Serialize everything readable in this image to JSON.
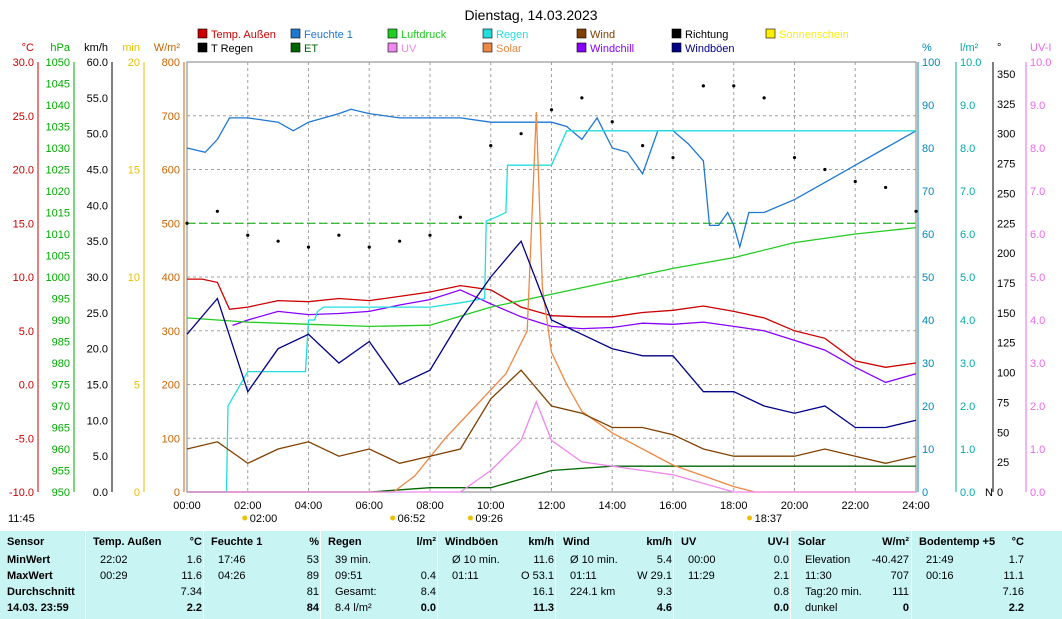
{
  "chart_data": {
    "type": "line",
    "title": "Dienstag, 14.03.2023",
    "x_ticks": [
      "00:00",
      "02:00",
      "04:00",
      "06:00",
      "08:00",
      "10:00",
      "12:00",
      "14:00",
      "16:00",
      "18:00",
      "20:00",
      "22:00",
      "24:00"
    ],
    "x_range_hours": [
      0,
      24
    ],
    "markers": [
      {
        "label": "02:00",
        "hour": 2.0,
        "color": "#f0c000"
      },
      {
        "label": "06:52",
        "hour": 6.87,
        "color": "#f0c000"
      },
      {
        "label": "09:26",
        "hour": 9.43,
        "color": "#f0c000"
      },
      {
        "label": "18:37",
        "hour": 18.62,
        "color": "#f0c000"
      }
    ],
    "start_label": "11:45",
    "left_axes": [
      {
        "unit": "°C",
        "color": "#cc0000",
        "ticks": [
          "30.0",
          "25.0",
          "20.0",
          "15.0",
          "10.0",
          "5.0",
          "0.0",
          "-5.0",
          "-10.0"
        ],
        "range": [
          -10,
          30
        ]
      },
      {
        "unit": "hPa",
        "color": "#00aa00",
        "ticks": [
          "1050",
          "1045",
          "1040",
          "1035",
          "1030",
          "1025",
          "1020",
          "1015",
          "1010",
          "1005",
          "1000",
          "995",
          "990",
          "985",
          "980",
          "975",
          "970",
          "965",
          "960",
          "955",
          "950"
        ],
        "range": [
          950,
          1050
        ]
      },
      {
        "unit": "km/h",
        "color": "#000000",
        "ticks": [
          "60.0",
          "55.0",
          "50.0",
          "45.0",
          "40.0",
          "35.0",
          "30.0",
          "25.0",
          "20.0",
          "15.0",
          "10.0",
          "5.0",
          "0.0"
        ],
        "range": [
          0,
          60
        ]
      },
      {
        "unit": "min",
        "color": "#e8c000",
        "ticks": [
          "20",
          "15",
          "10",
          "5",
          "0"
        ],
        "range": [
          0,
          20
        ]
      },
      {
        "unit": "W/m²",
        "color": "#c86400",
        "ticks": [
          "800",
          "700",
          "600",
          "500",
          "400",
          "300",
          "200",
          "100",
          "0"
        ],
        "range": [
          0,
          800
        ]
      }
    ],
    "right_axes": [
      {
        "unit": "%",
        "color": "#0088bb",
        "ticks": [
          "100",
          "90",
          "80",
          "70",
          "60",
          "50",
          "40",
          "30",
          "20",
          "10",
          "0"
        ],
        "range": [
          0,
          100
        ]
      },
      {
        "unit": "l/m²",
        "color": "#00aaaa",
        "ticks": [
          "10.0",
          "9.0",
          "8.0",
          "7.0",
          "6.0",
          "5.0",
          "4.0",
          "3.0",
          "2.0",
          "1.0",
          "0.0"
        ],
        "range": [
          0,
          10
        ]
      },
      {
        "unit": "°",
        "color": "#000000",
        "ticks": [
          "350",
          "325",
          "300",
          "275",
          "250",
          "225",
          "200",
          "175",
          "150",
          "125",
          "100",
          "75",
          "50",
          "25",
          "0"
        ],
        "range": [
          0,
          360
        ],
        "bottom_label": "N"
      },
      {
        "unit": "UV-I",
        "color": "#ee66ee",
        "ticks": [
          "10.0",
          "9.0",
          "8.0",
          "7.0",
          "6.0",
          "5.0",
          "4.0",
          "3.0",
          "2.0",
          "1.0",
          "0.0"
        ],
        "range": [
          0,
          10
        ]
      }
    ],
    "legend": [
      {
        "label": "Temp. Außen",
        "color": "#cc0000"
      },
      {
        "label": "Feuchte 1",
        "color": "#1e78d2"
      },
      {
        "label": "Luftdruck",
        "color": "#22cc22"
      },
      {
        "label": "Regen",
        "color": "#22dddd"
      },
      {
        "label": "Wind",
        "color": "#804000"
      },
      {
        "label": "Richtung",
        "color": "#000000"
      },
      {
        "label": "Sonnenschein",
        "color": "#ffee00"
      },
      {
        "label": "T Regen",
        "color": "#000000"
      },
      {
        "label": "ET",
        "color": "#006600"
      },
      {
        "label": "UV",
        "color": "#ee88ee"
      },
      {
        "label": "Solar",
        "color": "#ee8844"
      },
      {
        "label": "Windchill",
        "color": "#8800ff"
      },
      {
        "label": "Windböen",
        "color": "#000088"
      }
    ],
    "series": [
      {
        "name": "Temp. Außen",
        "axis": "°C",
        "color": "#cc0000",
        "x": [
          0,
          0.5,
          1,
          1.4,
          2,
          3,
          4,
          5,
          6,
          7,
          8,
          9,
          10,
          11,
          12,
          13,
          14,
          15,
          16,
          17,
          18,
          19,
          20,
          21,
          22,
          23,
          24
        ],
        "y": [
          9.8,
          9.8,
          9.5,
          7.0,
          7.2,
          7.8,
          7.7,
          8.0,
          7.8,
          8.2,
          8.6,
          9.2,
          8.8,
          7.2,
          6.4,
          6.3,
          6.3,
          6.7,
          6.9,
          7.3,
          6.8,
          6.2,
          5.0,
          4.3,
          2.2,
          1.6,
          2.0
        ]
      },
      {
        "name": "Windchill",
        "axis": "°C",
        "color": "#8800ff",
        "x": [
          1.5,
          2,
          3,
          4,
          5,
          6,
          7,
          8,
          9,
          10,
          11,
          12,
          13,
          14,
          15,
          16,
          17,
          18,
          19,
          20,
          21,
          22,
          23,
          24
        ],
        "y": [
          5.5,
          6.0,
          6.8,
          6.5,
          6.6,
          6.8,
          7.4,
          7.9,
          8.8,
          7.5,
          6.3,
          5.4,
          5.2,
          5.3,
          5.7,
          5.6,
          5.8,
          5.4,
          5.0,
          4.1,
          3.2,
          1.6,
          0.2,
          1.0
        ]
      },
      {
        "name": "Luftdruck",
        "axis": "hPa",
        "color": "#22cc22",
        "x": [
          0,
          2,
          4,
          6,
          8,
          10,
          12,
          14,
          16,
          18,
          20,
          22,
          24
        ],
        "y": [
          990.5,
          989.5,
          989.0,
          988.5,
          988.8,
          993.0,
          996.0,
          999.0,
          1002.0,
          1004.5,
          1008.0,
          1010.0,
          1011.5
        ]
      },
      {
        "name": "Feuchte 1",
        "axis": "%",
        "color": "#1e78d2",
        "x": [
          0,
          0.6,
          1.0,
          1.4,
          2,
          3,
          3.5,
          4,
          5,
          5.4,
          6,
          7,
          8,
          9,
          10,
          11,
          12,
          12.5,
          13,
          13.5,
          14,
          14.5,
          15,
          15.5,
          16,
          16.5,
          17,
          17.2,
          17.5,
          17.8,
          18,
          18.2,
          18.5,
          19,
          20,
          21,
          22,
          23,
          24
        ],
        "y": [
          80,
          79,
          82,
          87,
          87,
          86,
          84,
          86,
          88,
          89,
          88,
          87,
          87,
          87,
          86,
          86,
          86,
          85,
          82,
          87,
          80,
          79,
          74,
          84,
          84,
          81,
          77,
          62,
          62,
          65,
          62,
          57,
          65,
          65,
          68,
          72,
          76,
          80,
          84
        ]
      },
      {
        "name": "Regen",
        "axis": "l/m²",
        "color": "#22dddd",
        "x": [
          0,
          1.3,
          1.35,
          2.0,
          3.0,
          3.9,
          4.0,
          4.2,
          4.3,
          4.5,
          8.0,
          9.0,
          9.8,
          9.85,
          10.2,
          10.5,
          10.55,
          12.0,
          12.5,
          15.5,
          16.0,
          24.0
        ],
        "y": [
          0,
          0,
          2.0,
          2.8,
          2.8,
          2.8,
          4.0,
          4.0,
          4.2,
          4.3,
          4.3,
          4.4,
          4.5,
          6.3,
          6.4,
          6.5,
          7.6,
          7.6,
          8.4,
          8.4,
          8.4,
          8.4
        ]
      },
      {
        "name": "ET",
        "axis": "l/m²",
        "color": "#006600",
        "x": [
          0,
          2,
          4,
          6,
          8,
          10,
          12,
          14,
          16,
          18,
          24
        ],
        "y": [
          0,
          0,
          0,
          0,
          0.1,
          0.1,
          0.5,
          0.6,
          0.6,
          0.6,
          0.6
        ]
      },
      {
        "name": "Solar",
        "axis": "W/m²",
        "color": "#ee8844",
        "x": [
          0,
          6.8,
          7.5,
          8.5,
          9.5,
          10.5,
          11.2,
          11.5,
          11.7,
          12,
          12.5,
          13,
          14,
          15,
          16,
          17,
          18,
          18.7,
          24
        ],
        "y": [
          0,
          0,
          30,
          100,
          160,
          220,
          300,
          707,
          380,
          260,
          200,
          150,
          110,
          80,
          50,
          30,
          10,
          0,
          0
        ]
      },
      {
        "name": "UV",
        "axis": "UV-I",
        "color": "#ee88ee",
        "x": [
          0,
          9,
          10,
          11,
          11.5,
          12,
          13,
          14,
          15,
          16,
          17,
          18,
          24
        ],
        "y": [
          0,
          0,
          0.5,
          1.2,
          2.1,
          1.2,
          0.7,
          0.6,
          0.5,
          0.4,
          0.2,
          0,
          0
        ]
      },
      {
        "name": "Wind",
        "axis": "km/h",
        "color": "#804000",
        "x": [
          0,
          1,
          2,
          3,
          4,
          5,
          6,
          7,
          8,
          9,
          10,
          11,
          12,
          13,
          14,
          15,
          16,
          17,
          18,
          19,
          20,
          21,
          22,
          23,
          24
        ],
        "y": [
          6,
          7,
          4,
          6,
          7,
          5,
          6,
          4,
          5,
          6,
          13,
          17,
          12,
          11,
          9,
          9,
          8,
          6,
          5,
          5,
          5,
          6,
          5,
          4,
          5
        ]
      },
      {
        "name": "Windböen",
        "axis": "km/h",
        "color": "#000088",
        "x": [
          0,
          1,
          2,
          3,
          4,
          5,
          6,
          7,
          8,
          9,
          10,
          11,
          12,
          13,
          14,
          15,
          16,
          17,
          18,
          19,
          20,
          21,
          22,
          23,
          24
        ],
        "y": [
          22,
          27,
          14,
          20,
          22,
          18,
          21,
          15,
          17,
          24,
          30,
          35,
          24,
          22,
          20,
          19,
          19,
          14,
          14,
          12,
          11,
          12,
          9,
          9,
          10
        ]
      },
      {
        "name": "Richtung",
        "axis": "°",
        "color": "#000000",
        "style": "dots",
        "x": [
          0,
          1,
          2,
          3,
          4,
          5,
          6,
          7,
          8,
          9,
          10,
          11,
          12,
          13,
          14,
          15,
          16,
          17,
          18,
          19,
          20,
          21,
          22,
          23,
          24
        ],
        "y": [
          225,
          235,
          215,
          210,
          205,
          215,
          205,
          210,
          215,
          230,
          290,
          300,
          320,
          330,
          310,
          290,
          280,
          340,
          340,
          330,
          280,
          270,
          260,
          255,
          235
        ]
      }
    ],
    "reference_lines": [
      {
        "axis": "°C",
        "value": 15.0,
        "color": "#00aa00",
        "style": "dashed"
      }
    ]
  },
  "table": {
    "labels": [
      "Sensor",
      "MinWert",
      "MaxWert",
      "Durchschnitt",
      "14.03.  23:59"
    ],
    "columns": [
      {
        "header": "Temp. Außen",
        "unit": "°C",
        "rows": [
          [
            "22:02",
            "1.6"
          ],
          [
            "00:29",
            "11.6"
          ],
          [
            "",
            "7.34"
          ],
          [
            "",
            "2.2"
          ]
        ]
      },
      {
        "header": "Feuchte 1",
        "unit": "%",
        "rows": [
          [
            "17:46",
            "53"
          ],
          [
            "04:26",
            "89"
          ],
          [
            "",
            "81"
          ],
          [
            "",
            "84"
          ]
        ]
      },
      {
        "header": "Regen",
        "unit": "l/m²",
        "rows": [
          [
            "39 min.",
            ""
          ],
          [
            "09:51",
            "0.4"
          ],
          [
            "Gesamt:",
            "8.4"
          ],
          [
            "8.4 l/m²",
            "0.0"
          ]
        ]
      },
      {
        "header": "Windböen",
        "unit": "km/h",
        "rows": [
          [
            "Ø 10 min.",
            "11.6"
          ],
          [
            "01:11",
            "O 53.1"
          ],
          [
            "",
            "16.1"
          ],
          [
            "",
            "11.3"
          ]
        ]
      },
      {
        "header": "Wind",
        "unit": "km/h",
        "rows": [
          [
            "Ø 10 min.",
            "5.4"
          ],
          [
            "01:11",
            "W 29.1"
          ],
          [
            "224.1 km",
            "9.3"
          ],
          [
            "",
            "4.6"
          ]
        ]
      },
      {
        "header": "UV",
        "unit": "UV-I",
        "rows": [
          [
            "00:00",
            "0.0"
          ],
          [
            "11:29",
            "2.1"
          ],
          [
            "",
            "0.8"
          ],
          [
            "",
            "0.0"
          ]
        ]
      },
      {
        "header": "Solar",
        "unit": "W/m²",
        "rows": [
          [
            "Elevation",
            "-40.427"
          ],
          [
            "11:30",
            "707"
          ],
          [
            "Tag:20 min.",
            "111"
          ],
          [
            "dunkel",
            "0"
          ]
        ]
      },
      {
        "header": "Bodentemp +5",
        "unit": "°C",
        "rows": [
          [
            "21:49",
            "1.7"
          ],
          [
            "00:16",
            "11.1"
          ],
          [
            "",
            "7.16"
          ],
          [
            "",
            "2.2"
          ]
        ]
      }
    ]
  }
}
